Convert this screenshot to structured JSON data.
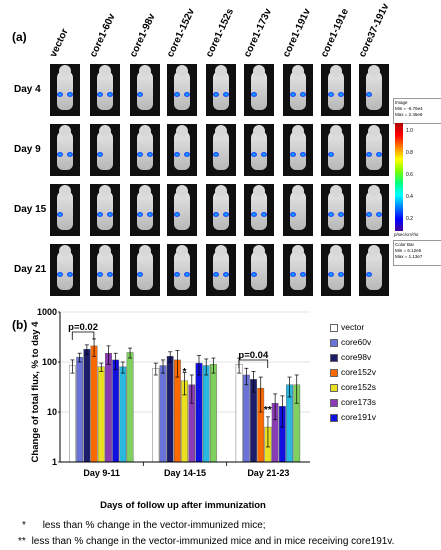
{
  "panel_a": {
    "label": "(a)",
    "columns": [
      "vector",
      "core1-60v",
      "core1-98v",
      "core1-152v",
      "core1-152s",
      "core1-173v",
      "core1-191v",
      "core1-191e",
      "core37-191v"
    ],
    "rows": [
      "Day 4",
      "Day 9",
      "Day 15",
      "Day 21"
    ],
    "scale_box_top": [
      "Image",
      "Min = -6.76e4",
      "Max = 2.45e6"
    ],
    "scale_ticks": [
      "1.0",
      "0.8",
      "0.6",
      "0.4",
      "0.2"
    ],
    "scale_unit": "p/sec/cm²/sr",
    "scale_box_bottom": [
      "Color Bar",
      "Min = 6.12e5",
      "Max = 1.13e7"
    ]
  },
  "panel_b": {
    "label": "(b)",
    "annotation_1": "p=0.02",
    "annotation_2": "p=0.04",
    "star_single": "*",
    "star_double": "**"
  },
  "chart_data": {
    "type": "bar",
    "categories": [
      "Day 9-11",
      "Day 14-15",
      "Day 21-23"
    ],
    "ylabel": "Change of total flux, % to day 4",
    "xlabel": "Days of follow up after immunization",
    "yscale": "log",
    "ylim": [
      1,
      1000
    ],
    "yticks": [
      "1",
      "10",
      "100",
      "1000"
    ],
    "grid": true,
    "legend_placement": "right",
    "series": [
      {
        "name": "vector",
        "color": "#ffffff",
        "values": [
          85,
          75,
          90
        ],
        "err": [
          25,
          20,
          30
        ]
      },
      {
        "name": "core60v",
        "color": "#6a74d8",
        "values": [
          125,
          85,
          55
        ],
        "err": [
          25,
          25,
          20
        ]
      },
      {
        "name": "core98v",
        "color": "#1c1c6b",
        "values": [
          180,
          130,
          45
        ],
        "err": [
          40,
          30,
          20
        ]
      },
      {
        "name": "core152v",
        "color": "#ff6a00",
        "values": [
          210,
          110,
          30
        ],
        "err": [
          80,
          60,
          20
        ]
      },
      {
        "name": "core152s",
        "color": "#e8e020",
        "values": [
          80,
          42,
          5
        ],
        "err": [
          15,
          20,
          3
        ]
      },
      {
        "name": "core173s",
        "color": "#8a3cb4",
        "values": [
          150,
          35,
          15
        ],
        "err": [
          60,
          20,
          8
        ]
      },
      {
        "name": "core191v",
        "color": "#1010e0",
        "values": [
          110,
          95,
          13
        ],
        "err": [
          40,
          40,
          8
        ]
      },
      {
        "name": "",
        "color": "#28b8e0",
        "values": [
          80,
          85,
          35
        ],
        "err": [
          20,
          30,
          15
        ]
      },
      {
        "name": "",
        "color": "#80d060",
        "values": [
          155,
          90,
          35
        ],
        "err": [
          35,
          30,
          20
        ]
      }
    ]
  },
  "footnotes": {
    "star1_symbol": "*",
    "star1_text": "less than % change in  the vector-immunized mice;",
    "star2_symbol": "**",
    "star2_text": "less than % change in the vector-immunized  mice and in mice receiving core191v."
  }
}
